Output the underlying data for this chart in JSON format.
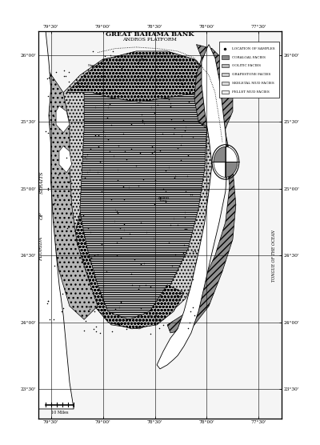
{
  "title": "GREAT BAHAMA BANK",
  "subtitle": "ANDROS PLATFORM",
  "legend_labels": [
    "LOCATION OF SAMPLES",
    "CORALGAL FACIES",
    "OOLITIC FACIES",
    "GRAPESTONE FACIES",
    "SKELETAL MUD FACIES",
    "PELLET MUD FACIES"
  ],
  "legend_colors": [
    "none",
    "#888888",
    "#b8b8b8",
    "#cccccc",
    "#d8d8d8",
    "#eeeeee"
  ],
  "lat_ticks": [
    26.0,
    25.5,
    25.0,
    24.5,
    24.0,
    23.5
  ],
  "lon_ticks": [
    -79.5,
    -79.0,
    -78.5,
    -78.0,
    -77.5
  ],
  "lon_labels": [
    "79°30'",
    "79°00'",
    "78°30'",
    "78°00'",
    "77°30'"
  ],
  "lat_labels": [
    "26°00'",
    "25°30'",
    "25°00'",
    "24°30'",
    "24°00'",
    "23°30'"
  ],
  "lon_min": -79.62,
  "lon_max": -77.28,
  "lat_min": 23.28,
  "lat_max": 26.18,
  "bg_color": "#ffffff",
  "straits_label": "STRAITS\nOF\nFLORIDA",
  "tongue_label": "TONGUE OF THE OCEAN",
  "scale_label": "10 Miles"
}
